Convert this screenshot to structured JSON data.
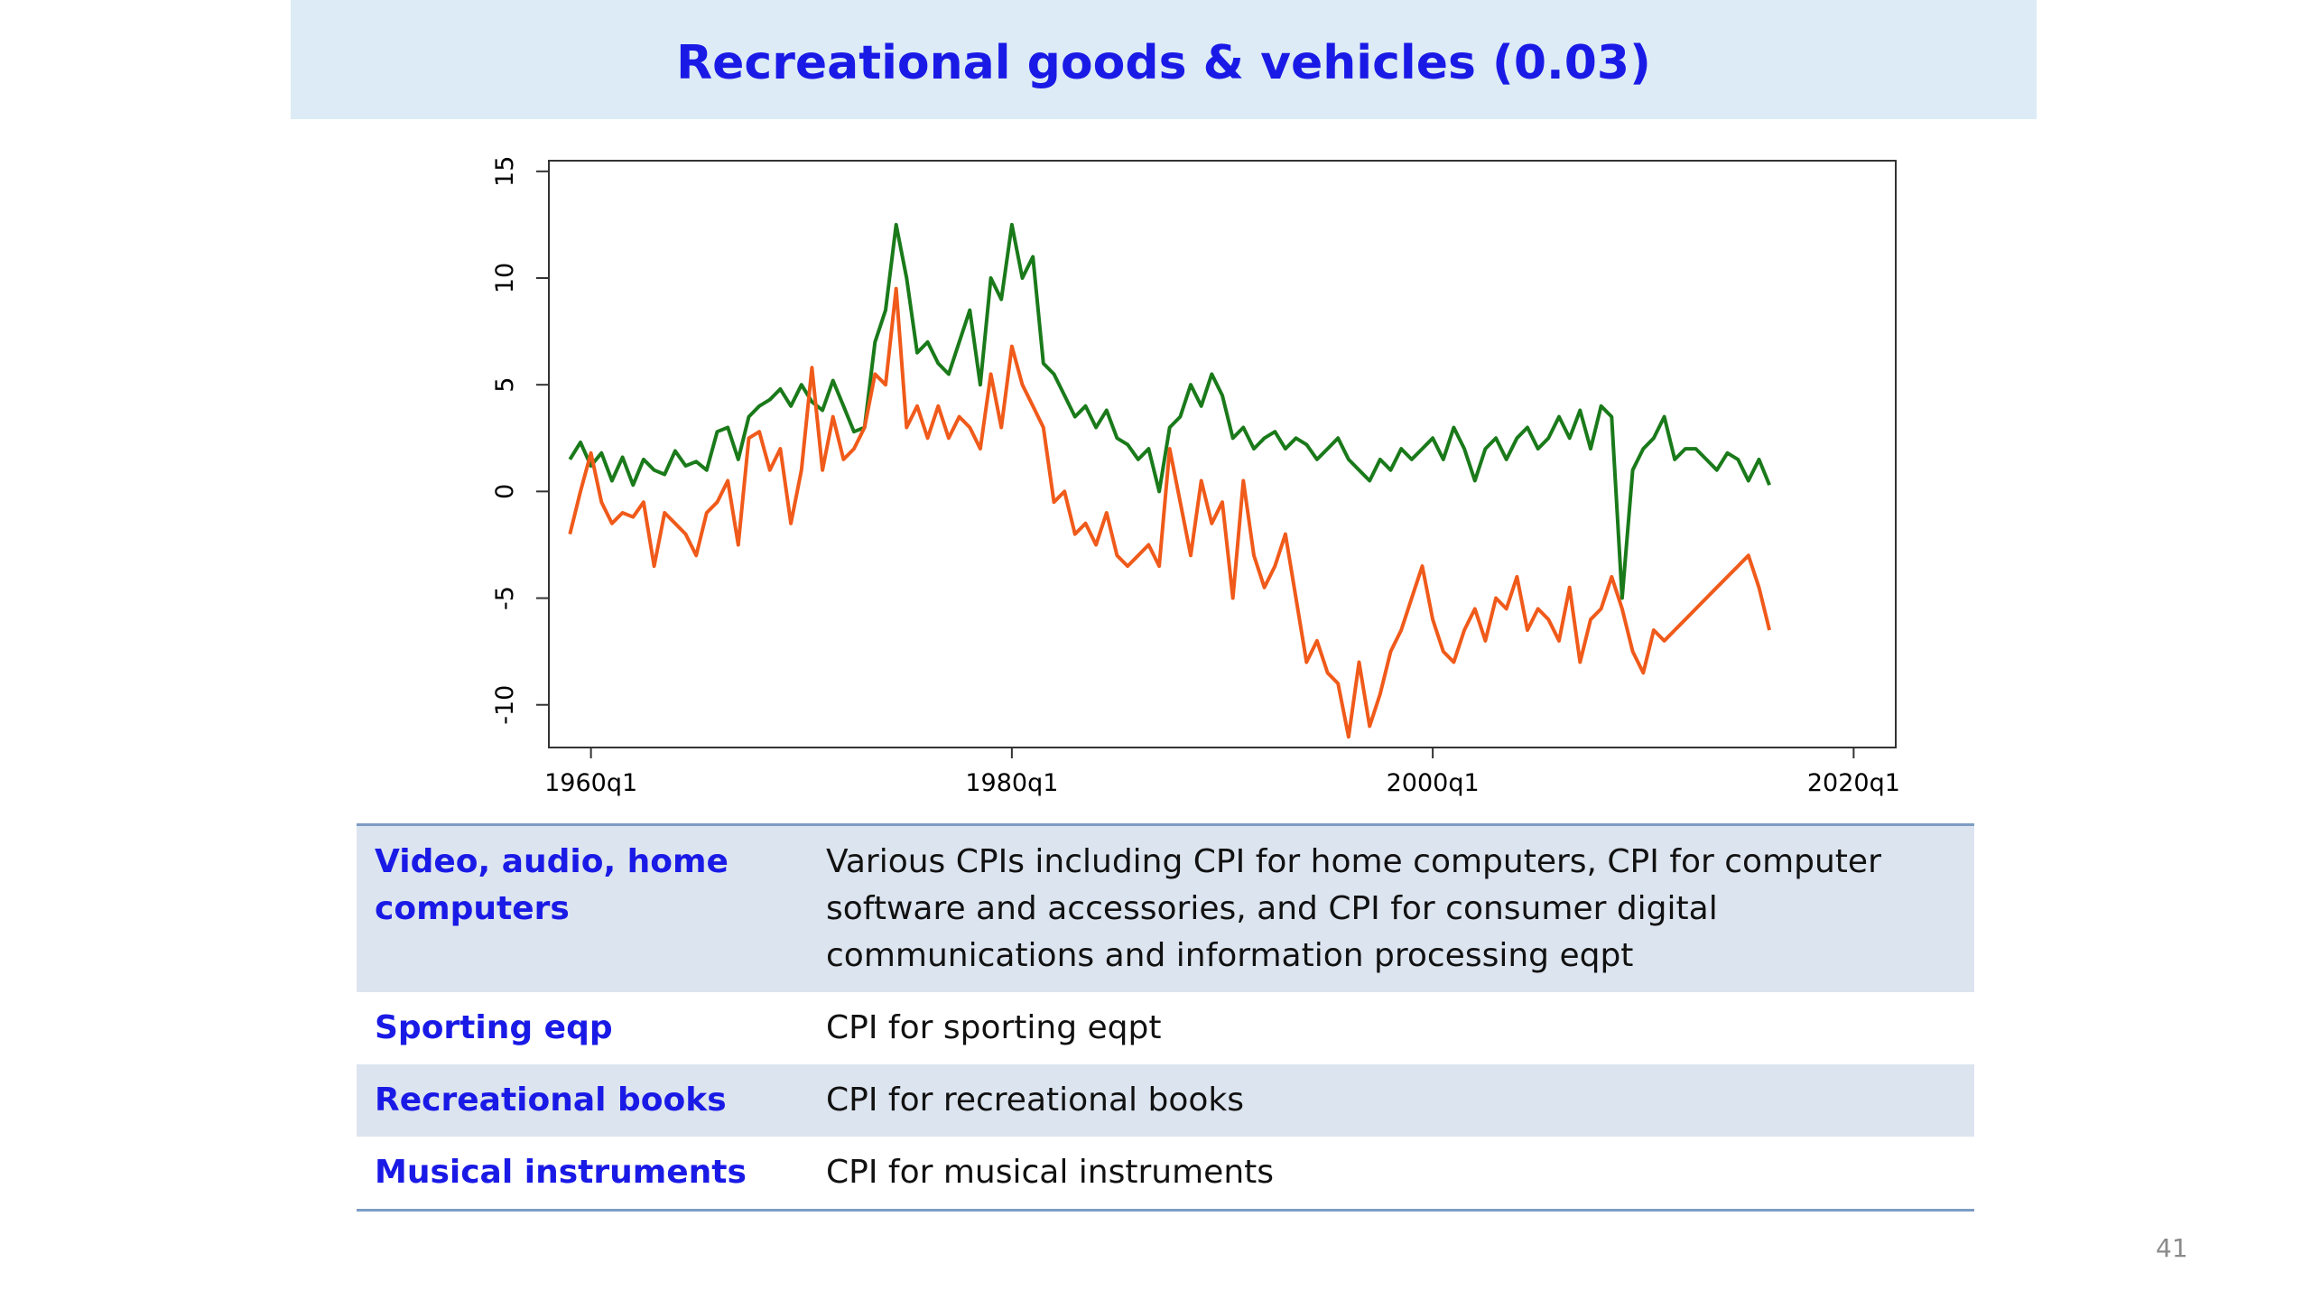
{
  "slide": {
    "title": "Recreational goods & vehicles (0.03)",
    "page_number": "41"
  },
  "chart_data": {
    "type": "line",
    "title": "",
    "xlabel": "",
    "ylabel": "",
    "xlim": [
      1958,
      2022
    ],
    "ylim": [
      -12,
      15.5
    ],
    "x_ticks": [
      1960,
      1980,
      2000,
      2020
    ],
    "x_tick_labels": [
      "1960q1",
      "1980q1",
      "2000q1",
      "2020q1"
    ],
    "y_ticks": [
      -10,
      -5,
      0,
      5,
      10,
      15
    ],
    "y_tick_labels": [
      "-10",
      "-5",
      "0",
      "5",
      "10",
      "15"
    ],
    "grid": false,
    "series": [
      {
        "color": "#1a7a1a",
        "x": [
          1959.0,
          1959.5,
          1960.0,
          1960.5,
          1961.0,
          1961.5,
          1962.0,
          1962.5,
          1963.0,
          1963.5,
          1964.0,
          1964.5,
          1965.0,
          1965.5,
          1966.0,
          1966.5,
          1967.0,
          1967.5,
          1968.0,
          1968.5,
          1969.0,
          1969.5,
          1970.0,
          1970.5,
          1971.0,
          1971.5,
          1972.0,
          1972.5,
          1973.0,
          1973.5,
          1974.0,
          1974.5,
          1975.0,
          1975.5,
          1976.0,
          1976.5,
          1977.0,
          1977.5,
          1978.0,
          1978.5,
          1979.0,
          1979.5,
          1980.0,
          1980.5,
          1981.0,
          1981.5,
          1982.0,
          1982.5,
          1983.0,
          1983.5,
          1984.0,
          1984.5,
          1985.0,
          1985.5,
          1986.0,
          1986.5,
          1987.0,
          1987.5,
          1988.0,
          1988.5,
          1989.0,
          1989.5,
          1990.0,
          1990.5,
          1991.0,
          1991.5,
          1992.0,
          1992.5,
          1993.0,
          1993.5,
          1994.0,
          1994.5,
          1995.0,
          1995.5,
          1996.0,
          1996.5,
          1997.0,
          1997.5,
          1998.0,
          1998.5,
          1999.0,
          1999.5,
          2000.0,
          2000.5,
          2001.0,
          2001.5,
          2002.0,
          2002.5,
          2003.0,
          2003.5,
          2004.0,
          2004.5,
          2005.0,
          2005.5,
          2006.0,
          2006.5,
          2007.0,
          2007.5,
          2008.0,
          2008.5,
          2009.0,
          2009.5,
          2010.0,
          2010.5,
          2011.0,
          2011.5,
          2012.0,
          2012.5,
          2013.0,
          2013.5,
          2014.0,
          2014.5,
          2015.0,
          2015.5,
          2016.0
        ],
        "y": [
          1.5,
          2.3,
          1.2,
          1.8,
          0.5,
          1.6,
          0.3,
          1.5,
          1.0,
          0.8,
          1.9,
          1.2,
          1.4,
          1.0,
          2.8,
          3.0,
          1.5,
          3.5,
          4.0,
          4.3,
          4.8,
          4.0,
          5.0,
          4.2,
          3.8,
          5.2,
          4.0,
          2.8,
          3.0,
          7.0,
          8.5,
          12.5,
          10.0,
          6.5,
          7.0,
          6.0,
          5.5,
          7.0,
          8.5,
          5.0,
          10.0,
          9.0,
          12.5,
          10.0,
          11.0,
          6.0,
          5.5,
          4.5,
          3.5,
          4.0,
          3.0,
          3.8,
          2.5,
          2.2,
          1.5,
          2.0,
          0.0,
          3.0,
          3.5,
          5.0,
          4.0,
          5.5,
          4.5,
          2.5,
          3.0,
          2.0,
          2.5,
          2.8,
          2.0,
          2.5,
          2.2,
          1.5,
          2.0,
          2.5,
          1.5,
          1.0,
          0.5,
          1.5,
          1.0,
          2.0,
          1.5,
          2.0,
          2.5,
          1.5,
          3.0,
          2.0,
          0.5,
          2.0,
          2.5,
          1.5,
          2.5,
          3.0,
          2.0,
          2.5,
          3.5,
          2.5,
          3.8,
          2.0,
          4.0,
          3.5,
          -5.0,
          1.0,
          2.0,
          2.5,
          3.5,
          1.5,
          2.0,
          2.0,
          1.5,
          1.0,
          1.8,
          1.5,
          0.5,
          1.5,
          0.3
        ],
        "y_tail_values": [
          -1.5,
          -1.8,
          2.0,
          1.2,
          0.5,
          0.3
        ]
      },
      {
        "color": "#f05a1a",
        "x": [
          1959.0,
          1959.5,
          1960.0,
          1960.5,
          1961.0,
          1961.5,
          1962.0,
          1962.5,
          1963.0,
          1963.5,
          1964.0,
          1964.5,
          1965.0,
          1965.5,
          1966.0,
          1966.5,
          1967.0,
          1967.5,
          1968.0,
          1968.5,
          1969.0,
          1969.5,
          1970.0,
          1970.5,
          1971.0,
          1971.5,
          1972.0,
          1972.5,
          1973.0,
          1973.5,
          1974.0,
          1974.5,
          1975.0,
          1975.5,
          1976.0,
          1976.5,
          1977.0,
          1977.5,
          1978.0,
          1978.5,
          1979.0,
          1979.5,
          1980.0,
          1980.5,
          1981.0,
          1981.5,
          1982.0,
          1982.5,
          1983.0,
          1983.5,
          1984.0,
          1984.5,
          1985.0,
          1985.5,
          1986.0,
          1986.5,
          1987.0,
          1987.5,
          1988.0,
          1988.5,
          1989.0,
          1989.5,
          1990.0,
          1990.5,
          1991.0,
          1991.5,
          1992.0,
          1992.5,
          1993.0,
          1993.5,
          1994.0,
          1994.5,
          1995.0,
          1995.5,
          1996.0,
          1996.5,
          1997.0,
          1997.5,
          1998.0,
          1998.5,
          1999.0,
          1999.5,
          2000.0,
          2000.5,
          2001.0,
          2001.5,
          2002.0,
          2002.5,
          2003.0,
          2003.5,
          2004.0,
          2004.5,
          2005.0,
          2005.5,
          2006.0,
          2006.5,
          2007.0,
          2007.5,
          2008.0,
          2008.5,
          2009.0,
          2009.5,
          2010.0,
          2010.5,
          2011.0,
          2011.5,
          2012.0,
          2012.5,
          2013.0,
          2013.5,
          2014.0,
          2014.5,
          2015.0,
          2015.5,
          2016.0
        ],
        "y": [
          -2.0,
          0.0,
          1.8,
          -0.5,
          -1.5,
          -1.0,
          -1.2,
          -0.5,
          -3.5,
          -1.0,
          -1.5,
          -2.0,
          -3.0,
          -1.0,
          -0.5,
          0.5,
          -2.5,
          2.5,
          2.8,
          1.0,
          2.0,
          -1.5,
          1.0,
          5.8,
          1.0,
          3.5,
          1.5,
          2.0,
          3.0,
          5.5,
          5.0,
          9.5,
          3.0,
          4.0,
          2.5,
          4.0,
          2.5,
          3.5,
          3.0,
          2.0,
          5.5,
          3.0,
          6.8,
          5.0,
          4.0,
          3.0,
          -0.5,
          0.0,
          -2.0,
          -1.5,
          -2.5,
          -1.0,
          -3.0,
          -3.5,
          -3.0,
          -2.5,
          -3.5,
          2.0,
          -0.5,
          -3.0,
          0.5,
          -1.5,
          -0.5,
          -5.0,
          0.5,
          -3.0,
          -4.5,
          -3.5,
          -2.0,
          -5.0,
          -8.0,
          -7.0,
          -8.5,
          -9.0,
          -11.5,
          -8.0,
          -11.0,
          -9.5,
          -7.5,
          -6.5,
          -5.0,
          -3.5,
          -6.0,
          -7.5,
          -8.0,
          -6.5,
          -5.5,
          -7.0,
          -5.0,
          -5.5,
          -4.0,
          -6.5,
          -5.5,
          -6.0,
          -7.0,
          -4.5,
          -8.0,
          -6.0,
          -5.5,
          -4.0,
          -5.5,
          -7.5,
          -8.5,
          -6.5,
          -7.0,
          -6.5,
          -6.0,
          -5.5,
          -5.0,
          -4.5,
          -4.0,
          -3.5,
          -3.0,
          -4.5,
          -6.5
        ]
      }
    ]
  },
  "table": {
    "rows": [
      {
        "label": "Video, audio, home computers",
        "description": "Various CPIs including CPI for home computers, CPI for computer software and accessories, and CPI for consumer digital communications and information processing eqpt"
      },
      {
        "label": "Sporting eqp",
        "description": "CPI for sporting eqpt"
      },
      {
        "label": "Recreational books",
        "description": "CPI for recreational books"
      },
      {
        "label": "Musical instruments",
        "description": "CPI for musical instruments"
      }
    ]
  }
}
